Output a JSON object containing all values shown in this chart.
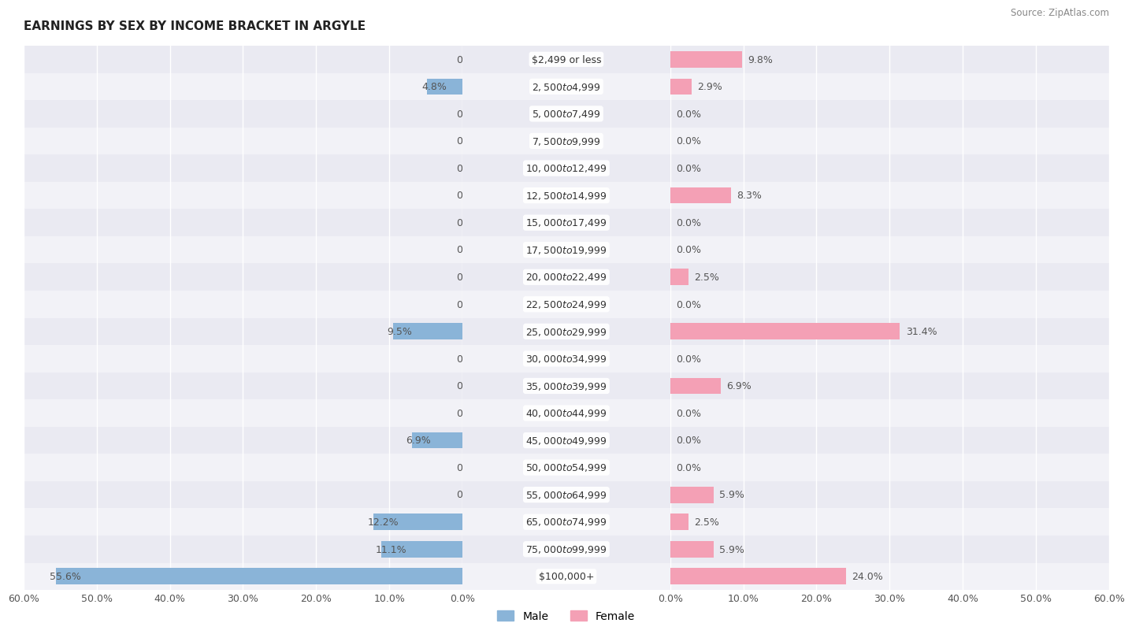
{
  "title": "EARNINGS BY SEX BY INCOME BRACKET IN ARGYLE",
  "source": "Source: ZipAtlas.com",
  "categories": [
    "$2,499 or less",
    "$2,500 to $4,999",
    "$5,000 to $7,499",
    "$7,500 to $9,999",
    "$10,000 to $12,499",
    "$12,500 to $14,999",
    "$15,000 to $17,499",
    "$17,500 to $19,999",
    "$20,000 to $22,499",
    "$22,500 to $24,999",
    "$25,000 to $29,999",
    "$30,000 to $34,999",
    "$35,000 to $39,999",
    "$40,000 to $44,999",
    "$45,000 to $49,999",
    "$50,000 to $54,999",
    "$55,000 to $64,999",
    "$65,000 to $74,999",
    "$75,000 to $99,999",
    "$100,000+"
  ],
  "male": [
    0.0,
    4.8,
    0.0,
    0.0,
    0.0,
    0.0,
    0.0,
    0.0,
    0.0,
    0.0,
    9.5,
    0.0,
    0.0,
    0.0,
    6.9,
    0.0,
    0.0,
    12.2,
    11.1,
    55.6
  ],
  "female": [
    9.8,
    2.9,
    0.0,
    0.0,
    0.0,
    8.3,
    0.0,
    0.0,
    2.5,
    0.0,
    31.4,
    0.0,
    6.9,
    0.0,
    0.0,
    0.0,
    5.9,
    2.5,
    5.9,
    24.0
  ],
  "male_color": "#8ab4d8",
  "female_color": "#f4a0b5",
  "bg_color": "#ffffff",
  "row_colors": [
    "#eaeaf2",
    "#f2f2f7"
  ],
  "axis_max": 60.0,
  "bar_height": 0.6,
  "label_fontsize": 9,
  "category_fontsize": 9,
  "title_fontsize": 11,
  "tick_fontsize": 9
}
